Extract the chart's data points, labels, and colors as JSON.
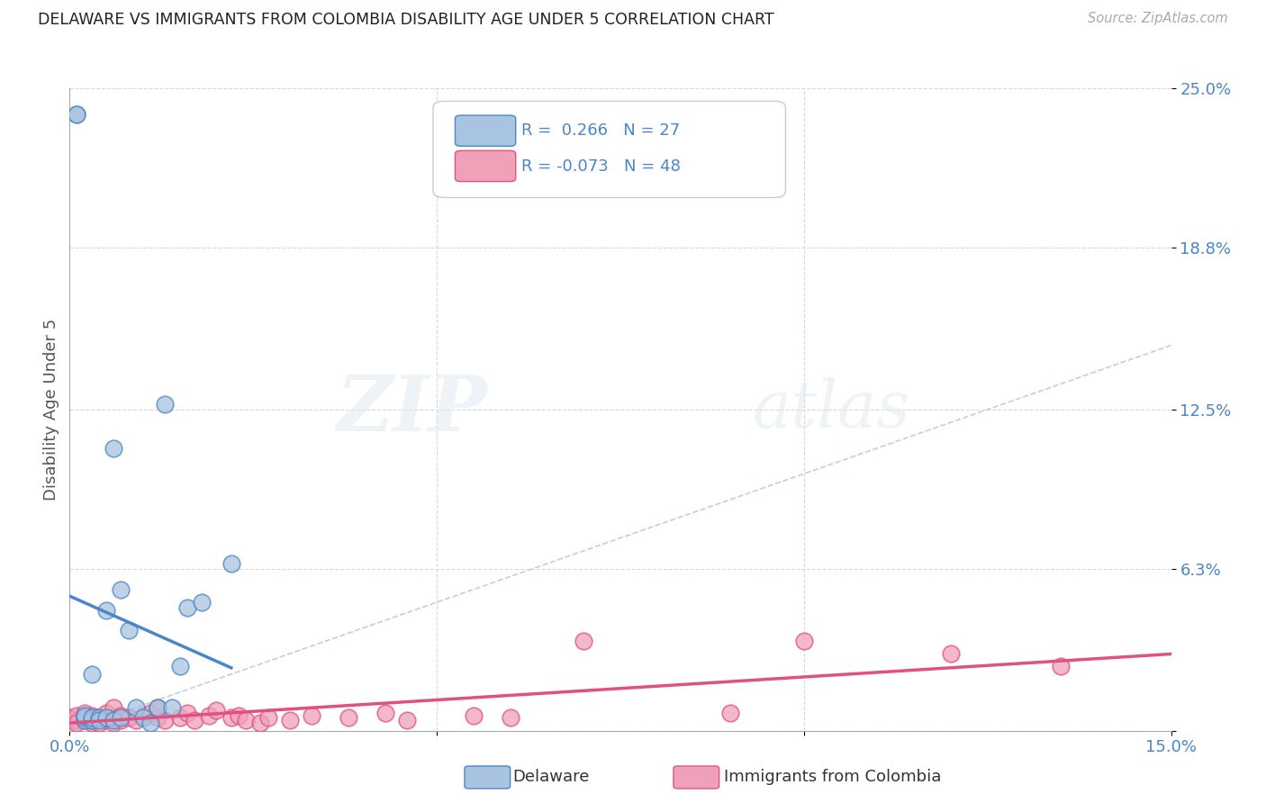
{
  "title": "DELAWARE VS IMMIGRANTS FROM COLOMBIA DISABILITY AGE UNDER 5 CORRELATION CHART",
  "source": "Source: ZipAtlas.com",
  "ylabel": "Disability Age Under 5",
  "xlim": [
    0.0,
    0.15
  ],
  "ylim": [
    0.0,
    0.25
  ],
  "ytick_positions": [
    0.0,
    0.063,
    0.125,
    0.188,
    0.25
  ],
  "yticklabels": [
    "",
    "6.3%",
    "12.5%",
    "18.8%",
    "25.0%"
  ],
  "watermark": "ZIPatlas",
  "delaware_R": 0.266,
  "delaware_N": 27,
  "colombia_R": -0.073,
  "colombia_N": 48,
  "delaware_color": "#a8c4e0",
  "delaware_line_color": "#4a86c8",
  "colombia_color": "#f0a0b8",
  "colombia_line_color": "#e05080",
  "diagonal_color": "#c0d0e0",
  "background_color": "#ffffff",
  "grid_color": "#d8d8d8",
  "delaware_x": [
    0.001,
    0.001,
    0.002,
    0.002,
    0.002,
    0.003,
    0.003,
    0.003,
    0.004,
    0.004,
    0.005,
    0.005,
    0.006,
    0.006,
    0.007,
    0.007,
    0.008,
    0.009,
    0.01,
    0.011,
    0.012,
    0.013,
    0.014,
    0.015,
    0.016,
    0.018,
    0.022
  ],
  "delaware_y": [
    0.24,
    0.24,
    0.004,
    0.005,
    0.006,
    0.004,
    0.005,
    0.022,
    0.005,
    0.004,
    0.047,
    0.005,
    0.11,
    0.004,
    0.005,
    0.055,
    0.039,
    0.009,
    0.005,
    0.003,
    0.009,
    0.127,
    0.009,
    0.025,
    0.048,
    0.05,
    0.065
  ],
  "colombia_x": [
    0.0,
    0.001,
    0.001,
    0.001,
    0.002,
    0.002,
    0.002,
    0.003,
    0.003,
    0.003,
    0.004,
    0.004,
    0.005,
    0.005,
    0.006,
    0.006,
    0.006,
    0.007,
    0.007,
    0.008,
    0.009,
    0.01,
    0.011,
    0.012,
    0.012,
    0.013,
    0.015,
    0.016,
    0.017,
    0.019,
    0.02,
    0.022,
    0.023,
    0.024,
    0.026,
    0.027,
    0.03,
    0.033,
    0.038,
    0.043,
    0.046,
    0.055,
    0.06,
    0.07,
    0.09,
    0.1,
    0.12,
    0.135
  ],
  "colombia_y": [
    0.005,
    0.004,
    0.006,
    0.003,
    0.004,
    0.006,
    0.007,
    0.003,
    0.004,
    0.006,
    0.003,
    0.005,
    0.004,
    0.007,
    0.003,
    0.005,
    0.009,
    0.004,
    0.006,
    0.005,
    0.004,
    0.006,
    0.007,
    0.005,
    0.009,
    0.004,
    0.005,
    0.007,
    0.004,
    0.006,
    0.008,
    0.005,
    0.006,
    0.004,
    0.003,
    0.005,
    0.004,
    0.006,
    0.005,
    0.007,
    0.004,
    0.006,
    0.005,
    0.035,
    0.007,
    0.035,
    0.03,
    0.025
  ]
}
